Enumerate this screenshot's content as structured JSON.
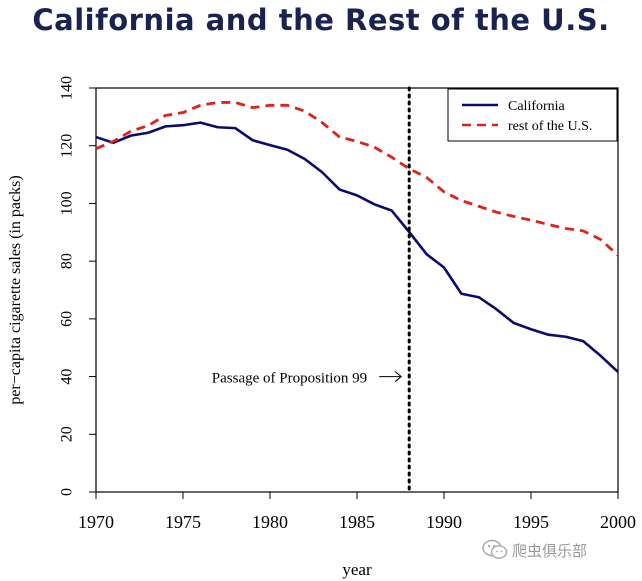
{
  "page": {
    "title": "California and the Rest of the U.S."
  },
  "watermark": {
    "text": "爬虫俱乐部"
  },
  "colors": {
    "california": "#0b0b6e",
    "rest": "#e0231a",
    "title": "#1a2350"
  },
  "chart_data": {
    "type": "line",
    "title": "California and the Rest of the U.S.",
    "xlabel": "year",
    "ylabel": "per−capita cigarette sales (in packs)",
    "xlim": [
      1970,
      2000
    ],
    "ylim": [
      0,
      140
    ],
    "x_ticks": [
      "1970",
      "1975",
      "1980",
      "1985",
      "1990",
      "1995",
      "2000"
    ],
    "y_ticks": [
      "0",
      "20",
      "40",
      "60",
      "80",
      "100",
      "120",
      "140"
    ],
    "grid": false,
    "legend": "top-right",
    "x": [
      1970,
      1971,
      1972,
      1973,
      1974,
      1975,
      1976,
      1977,
      1978,
      1979,
      1980,
      1981,
      1982,
      1983,
      1984,
      1985,
      1986,
      1987,
      1988,
      1989,
      1990,
      1991,
      1992,
      1993,
      1994,
      1995,
      1996,
      1997,
      1998,
      1999,
      2000
    ],
    "series": [
      {
        "name": "California",
        "style": "solid",
        "values": [
          123,
          121,
          123.5,
          124.5,
          126.7,
          127.1,
          128,
          126.4,
          126.1,
          121.9,
          120.2,
          118.6,
          115.4,
          110.8,
          104.8,
          102.8,
          99.7,
          97.5,
          90.1,
          82.4,
          77.8,
          68.7,
          67.5,
          63.4,
          58.6,
          56.4,
          54.5,
          53.8,
          52.3,
          47.2,
          41.6
        ]
      },
      {
        "name": "rest of the U.S.",
        "style": "dashed",
        "values": [
          119,
          121.5,
          125,
          127,
          130.5,
          131.5,
          134,
          135,
          135,
          133.2,
          134,
          134,
          132,
          128,
          123,
          121.5,
          119.5,
          116,
          112,
          109,
          104,
          101,
          99,
          97,
          95.5,
          94.2,
          92.7,
          91.3,
          90.5,
          87.5,
          82
        ]
      }
    ],
    "annotations": [
      {
        "text": "Passage of Proposition 99",
        "x": 1988,
        "y": 40,
        "arrow": true
      }
    ],
    "vline": {
      "x": 1988,
      "style": "dotted"
    }
  }
}
